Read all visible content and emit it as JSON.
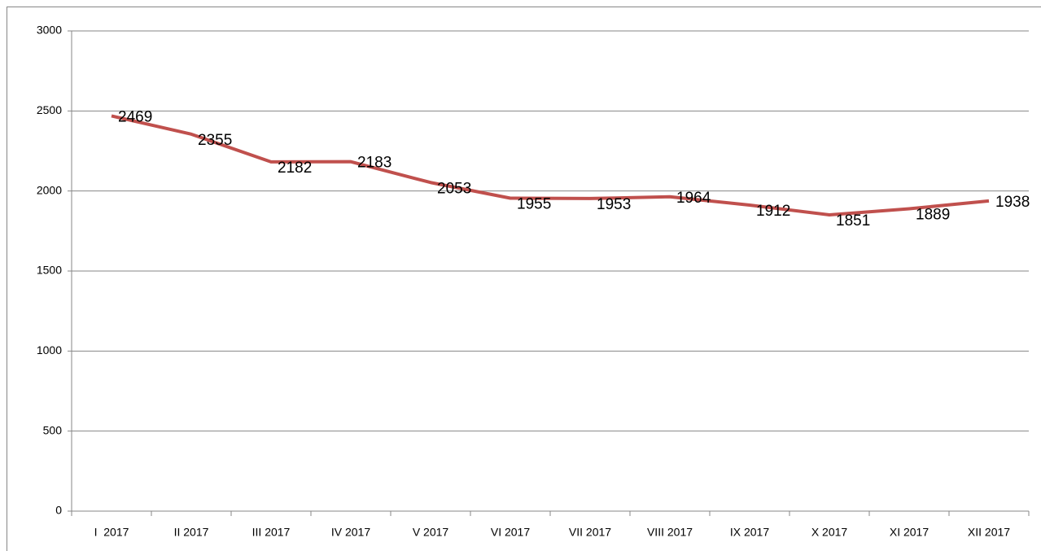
{
  "chart_data": {
    "type": "line",
    "categories": [
      "I  2017",
      "II 2017",
      "III 2017",
      "IV 2017",
      "V 2017",
      "VI 2017",
      "VII 2017",
      "VIII 2017",
      "IX 2017",
      "X 2017",
      "XI 2017",
      "XII 2017"
    ],
    "series": [
      {
        "name": null,
        "color": "#c0504d",
        "values": [
          2469,
          2355,
          2182,
          2183,
          2053,
          1955,
          1953,
          1964,
          1912,
          1851,
          1889,
          1938
        ]
      }
    ],
    "ylim": [
      0,
      3000
    ],
    "yticks": [
      0,
      500,
      1000,
      1500,
      2000,
      2500,
      3000
    ],
    "grid": true
  }
}
